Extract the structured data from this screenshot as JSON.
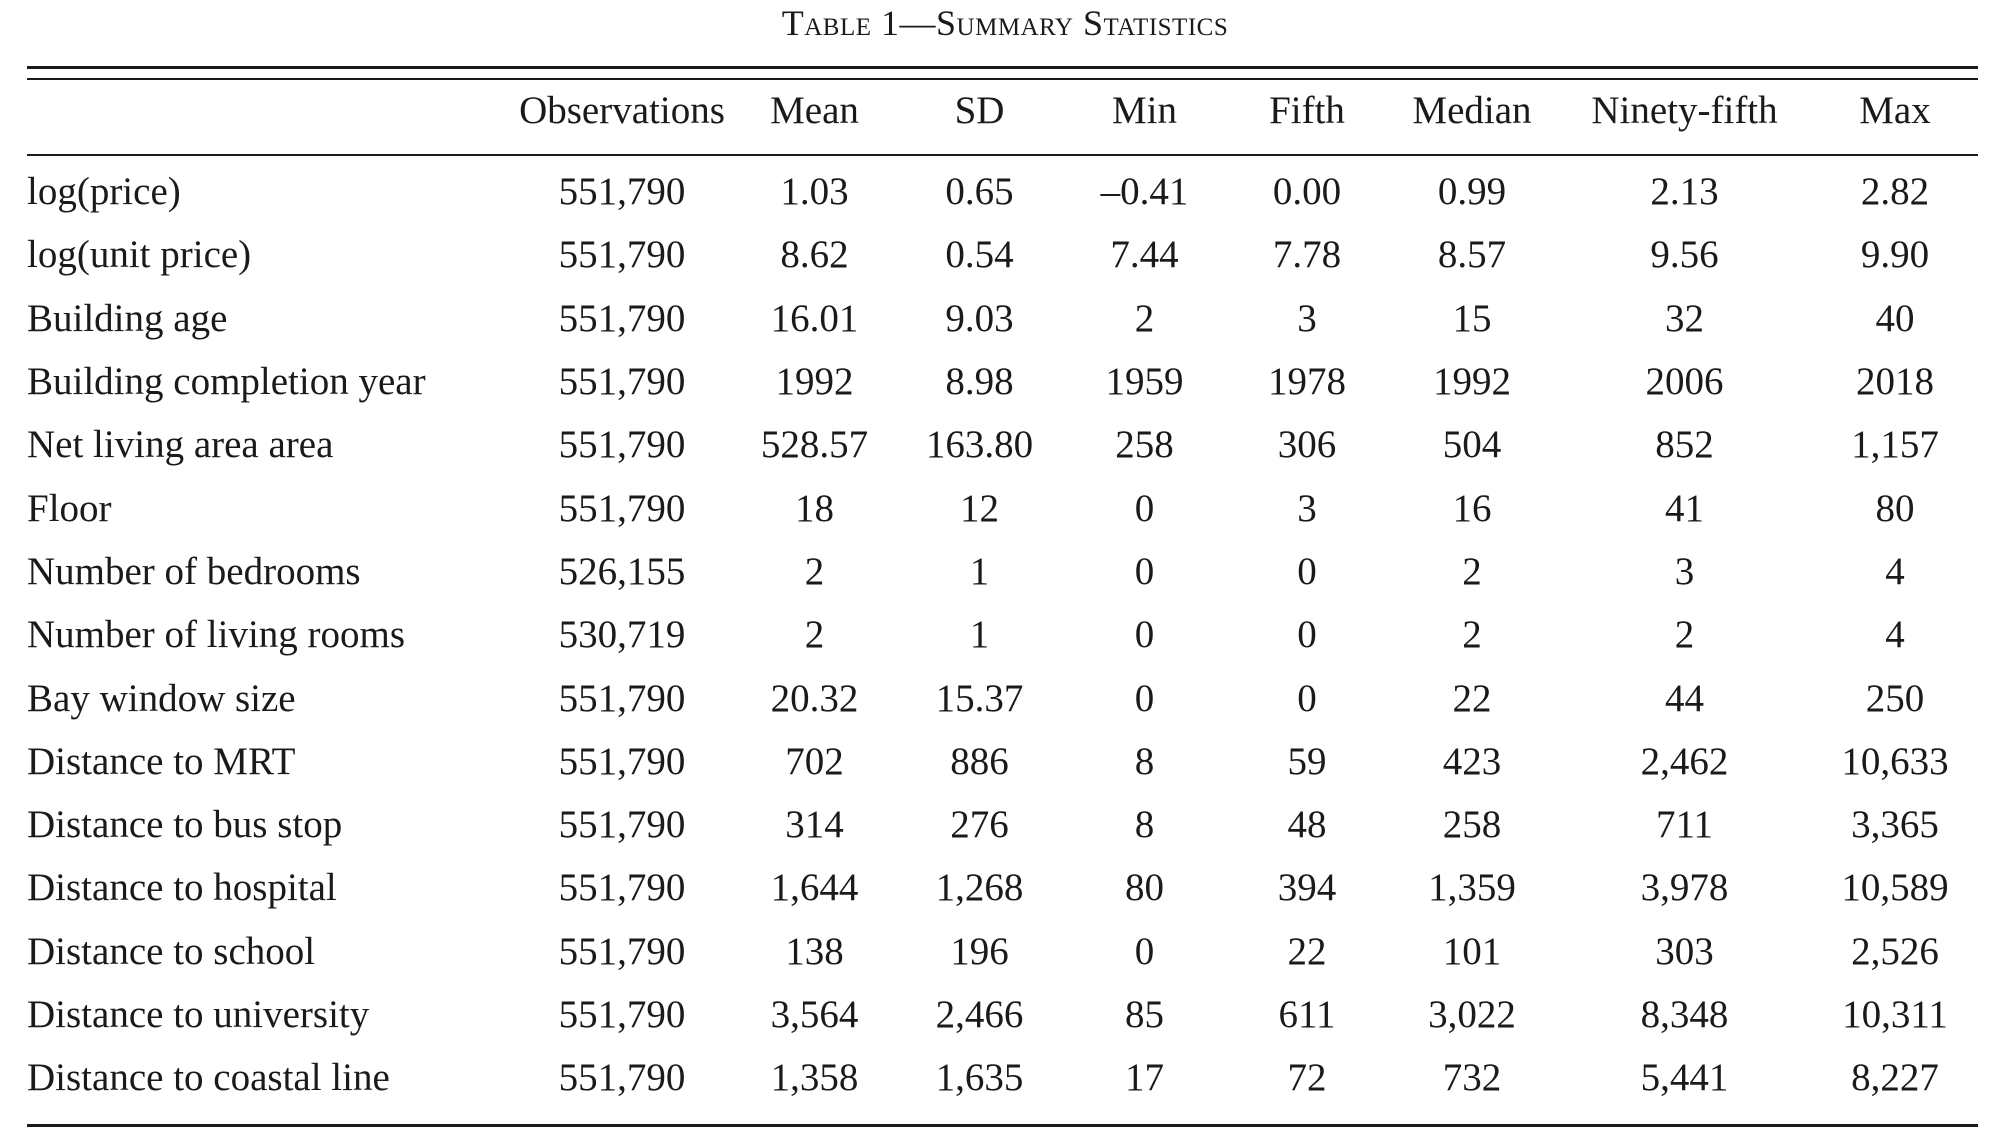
{
  "table": {
    "title_prefix": "Table 1—",
    "title_main": "Summary Statistics",
    "columns": [
      "",
      "Observations",
      "Mean",
      "SD",
      "Min",
      "Fifth",
      "Median",
      "Ninety-fifth",
      "Max"
    ],
    "rows": [
      [
        "log(price)",
        "551,790",
        "1.03",
        "0.65",
        "–0.41",
        "0.00",
        "0.99",
        "2.13",
        "2.82"
      ],
      [
        "log(unit price)",
        "551,790",
        "8.62",
        "0.54",
        "7.44",
        "7.78",
        "8.57",
        "9.56",
        "9.90"
      ],
      [
        "Building age",
        "551,790",
        "16.01",
        "9.03",
        "2",
        "3",
        "15",
        "32",
        "40"
      ],
      [
        "Building completion year",
        "551,790",
        "1992",
        "8.98",
        "1959",
        "1978",
        "1992",
        "2006",
        "2018"
      ],
      [
        "Net living area area",
        "551,790",
        "528.57",
        "163.80",
        "258",
        "306",
        "504",
        "852",
        "1,157"
      ],
      [
        "Floor",
        "551,790",
        "18",
        "12",
        "0",
        "3",
        "16",
        "41",
        "80"
      ],
      [
        "Number of bedrooms",
        "526,155",
        "2",
        "1",
        "0",
        "0",
        "2",
        "3",
        "4"
      ],
      [
        "Number of living rooms",
        "530,719",
        "2",
        "1",
        "0",
        "0",
        "2",
        "2",
        "4"
      ],
      [
        "Bay window size",
        "551,790",
        "20.32",
        "15.37",
        "0",
        "0",
        "22",
        "44",
        "250"
      ],
      [
        "Distance to MRT",
        "551,790",
        "702",
        "886",
        "8",
        "59",
        "423",
        "2,462",
        "10,633"
      ],
      [
        "Distance to bus stop",
        "551,790",
        "314",
        "276",
        "8",
        "48",
        "258",
        "711",
        "3,365"
      ],
      [
        "Distance to hospital",
        "551,790",
        "1,644",
        "1,268",
        "80",
        "394",
        "1,359",
        "3,978",
        "10,589"
      ],
      [
        "Distance to school",
        "551,790",
        "138",
        "196",
        "0",
        "22",
        "101",
        "303",
        "2,526"
      ],
      [
        "Distance to university",
        "551,790",
        "3,564",
        "2,466",
        "85",
        "611",
        "3,022",
        "8,348",
        "10,311"
      ],
      [
        "Distance to coastal line",
        "551,790",
        "1,358",
        "1,635",
        "17",
        "72",
        "732",
        "5,441",
        "8,227"
      ]
    ]
  }
}
